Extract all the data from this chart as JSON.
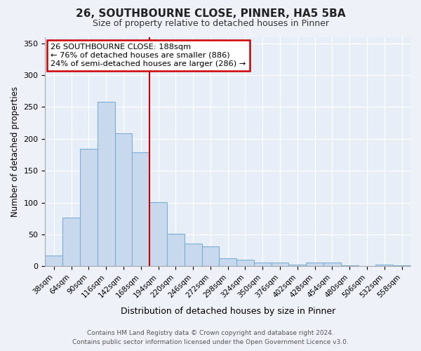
{
  "title": "26, SOUTHBOURNE CLOSE, PINNER, HA5 5BA",
  "subtitle": "Size of property relative to detached houses in Pinner",
  "xlabel": "Distribution of detached houses by size in Pinner",
  "ylabel": "Number of detached properties",
  "bar_labels": [
    "38sqm",
    "64sqm",
    "90sqm",
    "116sqm",
    "142sqm",
    "168sqm",
    "194sqm",
    "220sqm",
    "246sqm",
    "272sqm",
    "298sqm",
    "324sqm",
    "350sqm",
    "376sqm",
    "402sqm",
    "428sqm",
    "454sqm",
    "480sqm",
    "506sqm",
    "532sqm",
    "558sqm"
  ],
  "bar_values": [
    17,
    76,
    184,
    258,
    209,
    179,
    101,
    51,
    36,
    31,
    13,
    10,
    6,
    6,
    2,
    6,
    6,
    1,
    0,
    2,
    1
  ],
  "bar_color": "#c9d9ed",
  "bar_edge_color": "#7aafd4",
  "ylim": [
    0,
    360
  ],
  "yticks": [
    0,
    50,
    100,
    150,
    200,
    250,
    300,
    350
  ],
  "vline_x_index": 6,
  "vline_color": "#cc0000",
  "annotation_title": "26 SOUTHBOURNE CLOSE: 188sqm",
  "annotation_line1": "← 76% of detached houses are smaller (886)",
  "annotation_line2": "24% of semi-detached houses are larger (286) →",
  "annotation_box_color": "#ffffff",
  "annotation_box_edge_color": "#cc0000",
  "footer1": "Contains HM Land Registry data © Crown copyright and database right 2024.",
  "footer2": "Contains public sector information licensed under the Open Government Licence v3.0.",
  "background_color": "#eef2f8",
  "plot_background": "#e8eef8"
}
